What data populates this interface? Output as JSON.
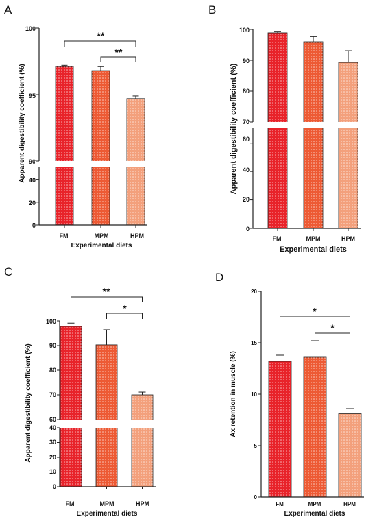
{
  "colors": {
    "FM": "#e8232a",
    "MPM": "#ed5a34",
    "HPM": "#f3a07c",
    "axis": "#111111"
  },
  "chart_data": [
    {
      "panel": "A",
      "type": "bar",
      "categories": [
        "FM",
        "MPM",
        "HPM"
      ],
      "values": [
        97.1,
        96.8,
        94.7
      ],
      "errors": [
        0.1,
        0.3,
        0.2
      ],
      "xlabel": "Experimental diets",
      "ylabel": "Apparent digestibility coefficient (%)",
      "ylim_upper": [
        90,
        100
      ],
      "ylim_lower": [
        0,
        50
      ],
      "upper_ticks": [
        "100",
        "95",
        "90"
      ],
      "lower_ticks": [
        "40",
        "20",
        "0"
      ],
      "significance": [
        {
          "from": "FM",
          "to": "HPM",
          "label": "**"
        },
        {
          "from": "MPM",
          "to": "HPM",
          "label": "**"
        }
      ]
    },
    {
      "panel": "B",
      "type": "bar",
      "categories": [
        "FM",
        "MPM",
        "HPM"
      ],
      "values": [
        98.9,
        96.0,
        89.3
      ],
      "errors": [
        0.5,
        1.7,
        3.8
      ],
      "xlabel": "Experimental diets",
      "ylabel": "Apparent digestibility coefficient (%)",
      "ylim_upper": [
        70,
        100
      ],
      "ylim_lower": [
        0,
        70
      ],
      "upper_ticks": [
        "100",
        "90",
        "80",
        "70"
      ],
      "lower_ticks": [
        "60",
        "40",
        "20",
        "0"
      ],
      "significance": []
    },
    {
      "panel": "C",
      "type": "bar",
      "categories": [
        "FM",
        "MPM",
        "HPM"
      ],
      "values": [
        97.8,
        90.3,
        70.0
      ],
      "errors": [
        1.3,
        6.1,
        1.1
      ],
      "xlabel": "Experimental diets",
      "ylabel": "Apparent digestibility coefficient (%)",
      "ylim_upper": [
        60,
        100
      ],
      "ylim_lower": [
        0,
        40
      ],
      "upper_ticks": [
        "100",
        "90",
        "80",
        "70",
        "60"
      ],
      "lower_ticks": [
        "40",
        "30",
        "20",
        "10",
        "0"
      ],
      "significance": [
        {
          "from": "FM",
          "to": "HPM",
          "label": "**"
        },
        {
          "from": "MPM",
          "to": "HPM",
          "label": "*"
        }
      ]
    },
    {
      "panel": "D",
      "type": "bar",
      "categories": [
        "FM",
        "MPM",
        "HPM"
      ],
      "values": [
        13.2,
        13.6,
        8.1
      ],
      "errors": [
        0.6,
        1.6,
        0.5
      ],
      "xlabel": "Experimental diets",
      "ylabel": "Ax retention in muscle (%)",
      "ylim": [
        0,
        20
      ],
      "ticks": [
        "20",
        "15",
        "10",
        "5",
        "0"
      ],
      "significance": [
        {
          "from": "FM",
          "to": "HPM",
          "label": "*"
        },
        {
          "from": "MPM",
          "to": "HPM",
          "label": "*"
        }
      ]
    }
  ]
}
